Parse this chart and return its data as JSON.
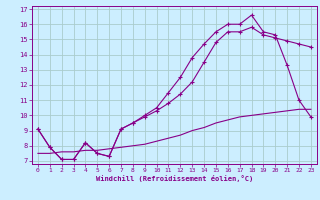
{
  "title": "",
  "xlabel": "Windchill (Refroidissement éolien,°C)",
  "bg_color": "#cceeff",
  "line_color": "#880088",
  "grid_color": "#aacccc",
  "xlim": [
    -0.5,
    23.5
  ],
  "ylim": [
    6.8,
    17.2
  ],
  "xticks": [
    0,
    1,
    2,
    3,
    4,
    5,
    6,
    7,
    8,
    9,
    10,
    11,
    12,
    13,
    14,
    15,
    16,
    17,
    18,
    19,
    20,
    21,
    22,
    23
  ],
  "yticks": [
    7,
    8,
    9,
    10,
    11,
    12,
    13,
    14,
    15,
    16,
    17
  ],
  "line1_x": [
    0,
    1,
    2,
    3,
    4,
    5,
    6,
    7,
    8,
    9,
    10,
    11,
    12,
    13,
    14,
    15,
    16,
    17,
    18,
    19,
    20,
    21,
    22,
    23
  ],
  "line1_y": [
    9.1,
    7.9,
    7.1,
    7.1,
    8.2,
    7.5,
    7.3,
    9.1,
    9.5,
    10.0,
    10.5,
    11.5,
    12.5,
    13.8,
    14.7,
    15.5,
    16.0,
    16.0,
    16.6,
    15.5,
    15.3,
    13.3,
    11.0,
    9.9
  ],
  "line2_x": [
    0,
    1,
    2,
    3,
    4,
    5,
    6,
    7,
    8,
    9,
    10,
    11,
    12,
    13,
    14,
    15,
    16,
    17,
    18,
    19,
    20,
    21,
    22,
    23
  ],
  "line2_y": [
    9.1,
    7.9,
    7.1,
    7.1,
    8.2,
    7.5,
    7.3,
    9.1,
    9.5,
    9.9,
    10.3,
    10.8,
    11.4,
    12.2,
    13.5,
    14.8,
    15.5,
    15.5,
    15.8,
    15.3,
    15.1,
    14.9,
    14.7,
    14.5
  ],
  "line3_x": [
    0,
    1,
    2,
    3,
    4,
    5,
    6,
    7,
    8,
    9,
    10,
    11,
    12,
    13,
    14,
    15,
    16,
    17,
    18,
    19,
    20,
    21,
    22,
    23
  ],
  "line3_y": [
    7.5,
    7.5,
    7.6,
    7.6,
    7.7,
    7.7,
    7.8,
    7.9,
    8.0,
    8.1,
    8.3,
    8.5,
    8.7,
    9.0,
    9.2,
    9.5,
    9.7,
    9.9,
    10.0,
    10.1,
    10.2,
    10.3,
    10.4,
    10.4
  ]
}
